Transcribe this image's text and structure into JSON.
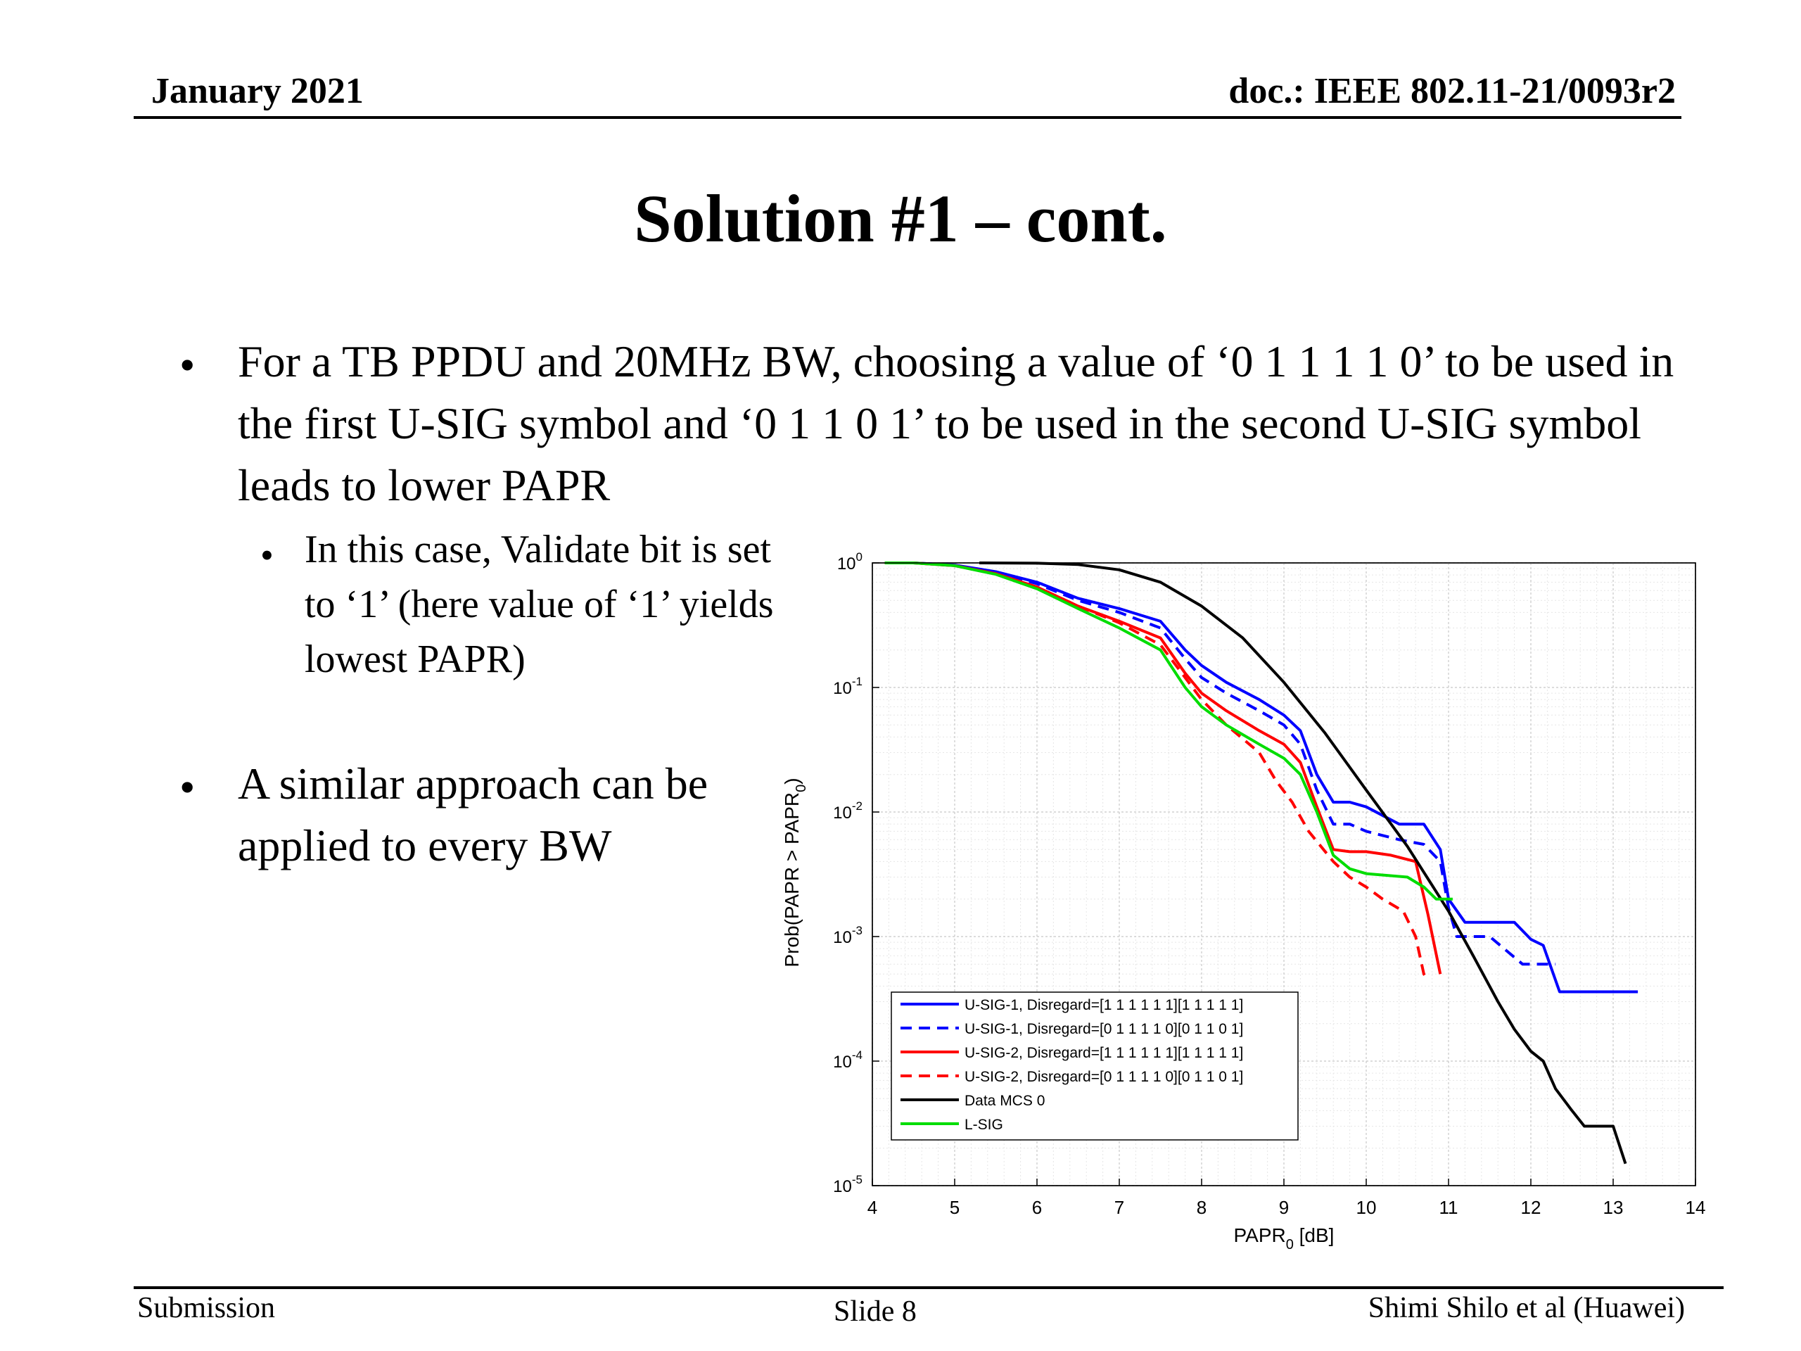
{
  "header": {
    "date": "January 2021",
    "doc": "doc.: IEEE 802.11-21/0093r2"
  },
  "title": "Solution #1 – cont.",
  "bullets": {
    "b1": "For a TB PPDU and 20MHz BW, choosing a value of ‘0 1 1 1 1 0’ to be used in the first U-SIG symbol and ‘0 1 1 0 1’ to be used in the second U-SIG symbol leads to lower PAPR",
    "s1": "In this case, Validate bit is set to ‘1’ (here value of ‘1’ yields lowest PAPR)",
    "b2": "A similar approach can be applied to every BW",
    "symbol": "•"
  },
  "footer": {
    "left": "Submission",
    "center": "Slide 8",
    "right": "Shimi Shilo et al (Huawei)"
  },
  "chart_data": {
    "type": "line",
    "xlabel": "PAPR",
    "xlabel_sub": "0",
    "xlabel_unit": " [dB]",
    "ylabel": "Prob(PAPR > PAPR",
    "ylabel_sub": "0",
    "ylabel_end": ")",
    "xlim": [
      4,
      14
    ],
    "ylim": [
      1e-05,
      1
    ],
    "yscale": "log",
    "grid": true,
    "legend_position": "bottom-left",
    "x_ticks": [
      "4",
      "5",
      "6",
      "7",
      "8",
      "9",
      "10",
      "11",
      "12",
      "13",
      "14"
    ],
    "y_ticks": [
      {
        "base": "10",
        "exp": "0",
        "value": 1
      },
      {
        "base": "10",
        "exp": "-1",
        "value": 0.1
      },
      {
        "base": "10",
        "exp": "-2",
        "value": 0.01
      },
      {
        "base": "10",
        "exp": "-3",
        "value": 0.001
      },
      {
        "base": "10",
        "exp": "-4",
        "value": 0.0001
      },
      {
        "base": "10",
        "exp": "-5",
        "value": 1e-05
      }
    ],
    "series": [
      {
        "name": "U-SIG-1, Disregard=[1 1 1 1 1 1][1 1 1 1 1]",
        "color": "#0000ff",
        "dash": false,
        "x": [
          4.15,
          4.5,
          5.0,
          5.5,
          6.0,
          6.5,
          7.0,
          7.5,
          7.8,
          8.0,
          8.3,
          8.7,
          9.0,
          9.2,
          9.4,
          9.6,
          9.8,
          10.0,
          10.4,
          10.7,
          10.9,
          11.0,
          11.2,
          11.5,
          11.8,
          12.0,
          12.15,
          12.35,
          12.6,
          13.3
        ],
        "y": [
          1,
          1,
          0.96,
          0.85,
          0.7,
          0.52,
          0.43,
          0.34,
          0.2,
          0.15,
          0.11,
          0.08,
          0.06,
          0.045,
          0.02,
          0.012,
          0.012,
          0.011,
          0.008,
          0.008,
          0.005,
          0.002,
          0.0013,
          0.0013,
          0.0013,
          0.00095,
          0.00085,
          0.00036,
          0.00036,
          0.00036
        ]
      },
      {
        "name": "U-SIG-1, Disregard=[0 1 1 1 1 0][0 1 1 0 1]",
        "color": "#0000ff",
        "dash": true,
        "x": [
          4.15,
          4.5,
          5.0,
          5.5,
          6.0,
          6.5,
          7.0,
          7.5,
          7.8,
          8.0,
          8.3,
          8.7,
          9.0,
          9.2,
          9.4,
          9.6,
          9.8,
          10.0,
          10.4,
          10.7,
          10.9,
          11.0,
          11.1,
          11.5,
          11.9,
          12.3
        ],
        "y": [
          1,
          1,
          0.96,
          0.84,
          0.68,
          0.5,
          0.4,
          0.3,
          0.17,
          0.12,
          0.09,
          0.065,
          0.05,
          0.035,
          0.015,
          0.008,
          0.008,
          0.007,
          0.006,
          0.0055,
          0.004,
          0.0017,
          0.001,
          0.001,
          0.0006,
          0.0006
        ]
      },
      {
        "name": "U-SIG-2, Disregard=[1 1 1 1 1 1][1 1 1 1 1]",
        "color": "#ff0000",
        "dash": false,
        "x": [
          4.15,
          4.5,
          5.0,
          5.5,
          6.0,
          6.5,
          7.0,
          7.5,
          7.8,
          8.0,
          8.3,
          8.7,
          9.0,
          9.2,
          9.4,
          9.6,
          9.8,
          10.0,
          10.3,
          10.6,
          10.75,
          10.9
        ],
        "y": [
          1,
          1,
          0.95,
          0.82,
          0.64,
          0.45,
          0.34,
          0.25,
          0.13,
          0.09,
          0.065,
          0.045,
          0.035,
          0.025,
          0.011,
          0.005,
          0.0048,
          0.0048,
          0.0045,
          0.004,
          0.0015,
          0.0005
        ]
      },
      {
        "name": "U-SIG-2, Disregard=[0 1 1 1 1 0][0 1 1 0 1]",
        "color": "#ff0000",
        "dash": true,
        "x": [
          4.15,
          4.5,
          5.0,
          5.5,
          6.0,
          6.5,
          7.0,
          7.5,
          7.8,
          8.0,
          8.3,
          8.7,
          8.9,
          9.1,
          9.3,
          9.6,
          9.8,
          10.0,
          10.2,
          10.45,
          10.6,
          10.7,
          10.75
        ],
        "y": [
          1,
          1,
          0.95,
          0.82,
          0.64,
          0.45,
          0.33,
          0.22,
          0.12,
          0.08,
          0.05,
          0.03,
          0.018,
          0.012,
          0.007,
          0.004,
          0.003,
          0.0025,
          0.002,
          0.0016,
          0.001,
          0.0005,
          0.00045
        ]
      },
      {
        "name": "Data MCS 0",
        "color": "#000000",
        "dash": false,
        "x": [
          5.3,
          6.0,
          6.5,
          7.0,
          7.5,
          8.0,
          8.5,
          9.0,
          9.5,
          10.0,
          10.5,
          11.0,
          11.3,
          11.6,
          11.8,
          12.0,
          12.15,
          12.3,
          12.5,
          12.65,
          13.0,
          13.15
        ],
        "y": [
          1,
          0.995,
          0.97,
          0.88,
          0.7,
          0.45,
          0.25,
          0.11,
          0.043,
          0.015,
          0.0053,
          0.0016,
          0.0007,
          0.0003,
          0.00018,
          0.00012,
          0.0001,
          6e-05,
          4e-05,
          3e-05,
          3e-05,
          1.5e-05
        ]
      },
      {
        "name": "L-SIG",
        "color": "#00dd00",
        "dash": false,
        "x": [
          4.15,
          4.5,
          5.0,
          5.5,
          6.0,
          6.5,
          7.0,
          7.5,
          7.8,
          8.0,
          8.3,
          8.7,
          9.0,
          9.2,
          9.4,
          9.6,
          9.8,
          10.0,
          10.5,
          10.7,
          10.85,
          11.05
        ],
        "y": [
          1,
          1,
          0.95,
          0.81,
          0.62,
          0.43,
          0.3,
          0.2,
          0.1,
          0.07,
          0.05,
          0.035,
          0.027,
          0.02,
          0.01,
          0.0045,
          0.0035,
          0.0032,
          0.003,
          0.0025,
          0.002,
          0.002
        ]
      }
    ]
  }
}
